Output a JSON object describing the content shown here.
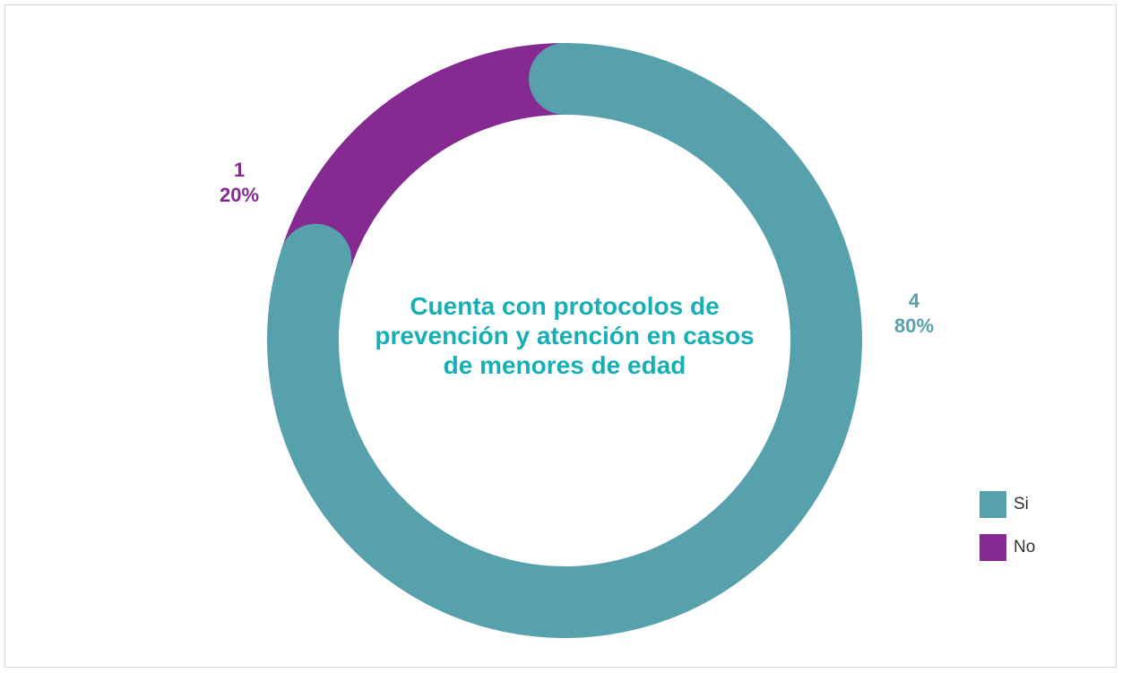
{
  "chart_data": {
    "type": "pie",
    "variant": "donut",
    "categories": [
      "Si",
      "No"
    ],
    "values": [
      4,
      1
    ],
    "percentages": [
      "80%",
      "20%"
    ],
    "colors": [
      "#57A1AD",
      "#842A91"
    ],
    "center_text": "Cuenta con protocolos de prevención y atención en casos de menores de edad",
    "legend": {
      "placement": "right",
      "entries": [
        "Si",
        "No"
      ]
    }
  },
  "colors": {
    "title": "#17AFB6",
    "si_label": "#57A1AD",
    "no_label": "#842A91"
  }
}
